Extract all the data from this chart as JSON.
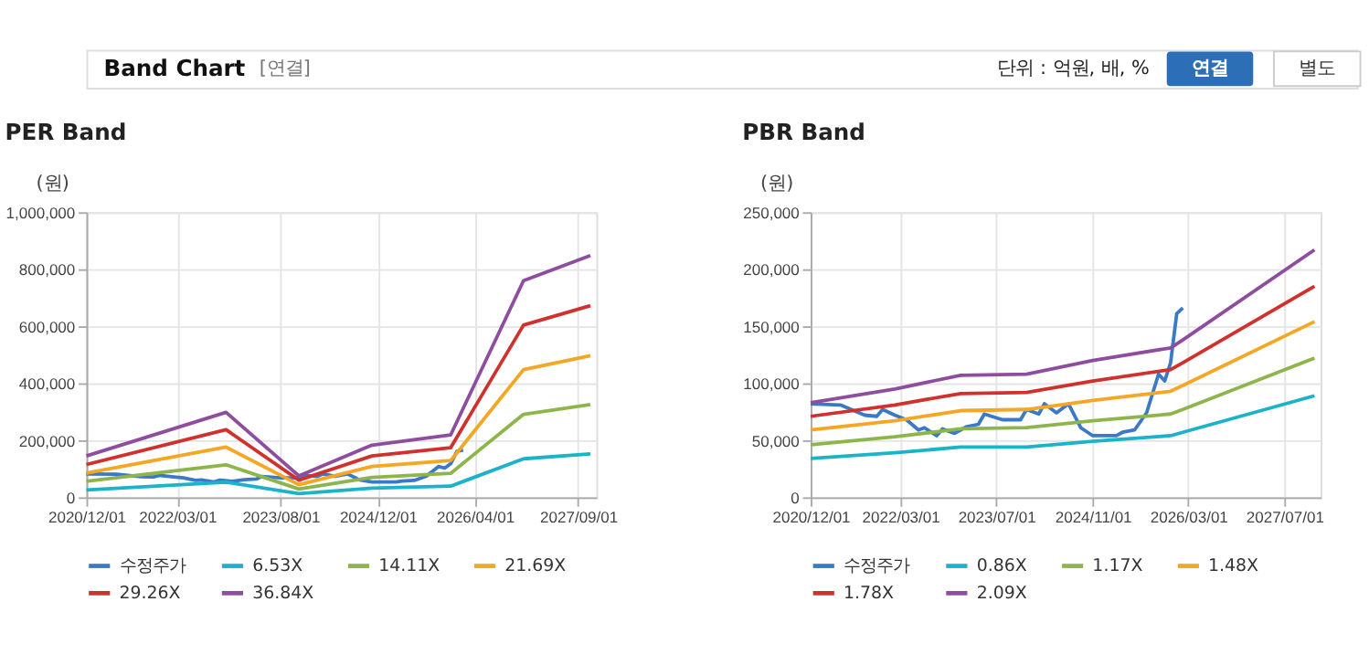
{
  "chart_data": [
    {
      "type": "line",
      "title": "PER Band",
      "ylabel": "(원)",
      "annotations": [
        "Band Chart",
        "[연결]",
        "단위 : 억원, 배, %",
        "연결",
        "별도"
      ],
      "x": [
        "2020-12",
        "2022-11",
        "2023-11",
        "2024-11",
        "2025-12",
        "2026-12",
        "2027-11"
      ],
      "xlim": [
        "2020-12-01",
        "2027-12-01"
      ],
      "xticks": [
        {
          "value": "2020-12-01",
          "label": "2020/12/01"
        },
        {
          "value": "2022-03-01",
          "label": "2022/03/01"
        },
        {
          "value": "2023-08-01",
          "label": "2023/08/01"
        },
        {
          "value": "2024-12-01",
          "label": "2024/12/01"
        },
        {
          "value": "2026-04-01",
          "label": "2026/04/01"
        },
        {
          "value": "2027-09-01",
          "label": "2027/09/01"
        }
      ],
      "ylim": [
        0,
        1000000
      ],
      "yticks": [
        {
          "value": 0,
          "label": "0"
        },
        {
          "value": 200000,
          "label": "200,000"
        },
        {
          "value": 400000,
          "label": "400,000"
        },
        {
          "value": 600000,
          "label": "600,000"
        },
        {
          "value": 800000,
          "label": "800,000"
        },
        {
          "value": 1000000,
          "label": "1,000,000"
        }
      ],
      "grid": true,
      "legend": "bottom",
      "marker": "none",
      "line_style": "solid",
      "series": [
        {
          "name": "수정주가",
          "color": "#3a78c8",
          "x": [
            "2020-12",
            "2021-05",
            "2021-09",
            "2021-11",
            "2021-12",
            "2022-02",
            "2022-04",
            "2022-06",
            "2022-07",
            "2022-09",
            "2022-10",
            "2022-12",
            "2023-02",
            "2023-04",
            "2023-05",
            "2023-08",
            "2023-11",
            "2023-12",
            "2024-02",
            "2024-03",
            "2024-05",
            "2024-07",
            "2024-09",
            "2024-11",
            "2025-03",
            "2025-04",
            "2025-06",
            "2025-08",
            "2025-10",
            "2025-11",
            "2025-12",
            "2026-01",
            "2026-02"
          ],
          "values": [
            82000,
            81000,
            72000,
            71000,
            77000,
            72000,
            68000,
            59000,
            61000,
            54000,
            60000,
            56000,
            62000,
            64000,
            73000,
            68000,
            68000,
            77000,
            73000,
            82000,
            74000,
            82000,
            61000,
            54000,
            54000,
            57000,
            59000,
            74000,
            108000,
            102000,
            118000,
            161000,
            166000
          ]
        },
        {
          "name": "6.53X",
          "color": "#1ab3c9",
          "values": [
            26000,
            53000,
            13000,
            32000,
            39000,
            135000,
            152000
          ]
        },
        {
          "name": "14.11X",
          "color": "#8db54b",
          "values": [
            56000,
            114000,
            29000,
            70000,
            84000,
            291000,
            325000
          ]
        },
        {
          "name": "21.69X",
          "color": "#f5a623",
          "values": [
            85000,
            176000,
            44000,
            108000,
            129000,
            448000,
            497000
          ]
        },
        {
          "name": "29.26X",
          "color": "#d0312d",
          "values": [
            115000,
            237000,
            60000,
            145000,
            174000,
            604000,
            672000
          ]
        },
        {
          "name": "36.84X",
          "color": "#8e4d9e",
          "values": [
            145000,
            298000,
            75000,
            183000,
            219000,
            760000,
            848000
          ]
        }
      ]
    },
    {
      "type": "line",
      "title": "PBR Band",
      "ylabel": "(원)",
      "x": [
        "2020-12",
        "2022-02",
        "2023-01",
        "2023-12",
        "2024-11",
        "2025-12",
        "2026-02",
        "2027-12"
      ],
      "xlim": [
        "2020-12-01",
        "2028-01-01"
      ],
      "xticks": [
        {
          "value": "2020-12-01",
          "label": "2020/12/01"
        },
        {
          "value": "2022-03-01",
          "label": "2022/03/01"
        },
        {
          "value": "2023-07-01",
          "label": "2023/07/01"
        },
        {
          "value": "2024-11-01",
          "label": "2024/11/01"
        },
        {
          "value": "2026-03-01",
          "label": "2026/03/01"
        },
        {
          "value": "2027-07-01",
          "label": "2027/07/01"
        }
      ],
      "ylim": [
        0,
        250000
      ],
      "yticks": [
        {
          "value": 0,
          "label": "0"
        },
        {
          "value": 50000,
          "label": "50,000"
        },
        {
          "value": 100000,
          "label": "100,000"
        },
        {
          "value": 150000,
          "label": "150,000"
        },
        {
          "value": 200000,
          "label": "200,000"
        },
        {
          "value": 250000,
          "label": "250,000"
        }
      ],
      "grid": true,
      "legend": "bottom",
      "marker": "none",
      "line_style": "solid",
      "series": [
        {
          "name": "수정주가",
          "color": "#3a78c8",
          "x": [
            "2020-12",
            "2021-05",
            "2021-09",
            "2021-11",
            "2021-12",
            "2022-02",
            "2022-04",
            "2022-06",
            "2022-07",
            "2022-09",
            "2022-10",
            "2022-12",
            "2023-02",
            "2023-04",
            "2023-05",
            "2023-08",
            "2023-11",
            "2023-12",
            "2024-02",
            "2024-03",
            "2024-05",
            "2024-07",
            "2024-09",
            "2024-11",
            "2025-03",
            "2025-04",
            "2025-06",
            "2025-08",
            "2025-10",
            "2025-11",
            "2025-12",
            "2026-01",
            "2026-02"
          ],
          "values": [
            82000,
            81000,
            72000,
            71000,
            77000,
            72000,
            68000,
            59000,
            61000,
            54000,
            60000,
            56000,
            62000,
            64000,
            73000,
            68000,
            68000,
            77000,
            73000,
            82000,
            74000,
            82000,
            61000,
            54000,
            54000,
            57000,
            59000,
            74000,
            108000,
            102000,
            118000,
            161000,
            166000
          ]
        },
        {
          "name": "0.86X",
          "color": "#1ab3c9",
          "values": [
            34000,
            39000,
            44000,
            44000,
            49000,
            54000,
            57000,
            89000
          ]
        },
        {
          "name": "1.17X",
          "color": "#8db54b",
          "values": [
            46000,
            53000,
            60000,
            61000,
            67000,
            73000,
            77000,
            122000
          ]
        },
        {
          "name": "1.48X",
          "color": "#f5a623",
          "values": [
            59000,
            67000,
            76000,
            77000,
            85000,
            93000,
            98000,
            154000
          ]
        },
        {
          "name": "1.78X",
          "color": "#d0312d",
          "values": [
            71000,
            81000,
            91000,
            92000,
            102000,
            112000,
            118000,
            185000
          ]
        },
        {
          "name": "2.09X",
          "color": "#8e4d9e",
          "values": [
            83000,
            95000,
            107000,
            108000,
            120000,
            131000,
            138000,
            217000
          ]
        }
      ]
    }
  ]
}
